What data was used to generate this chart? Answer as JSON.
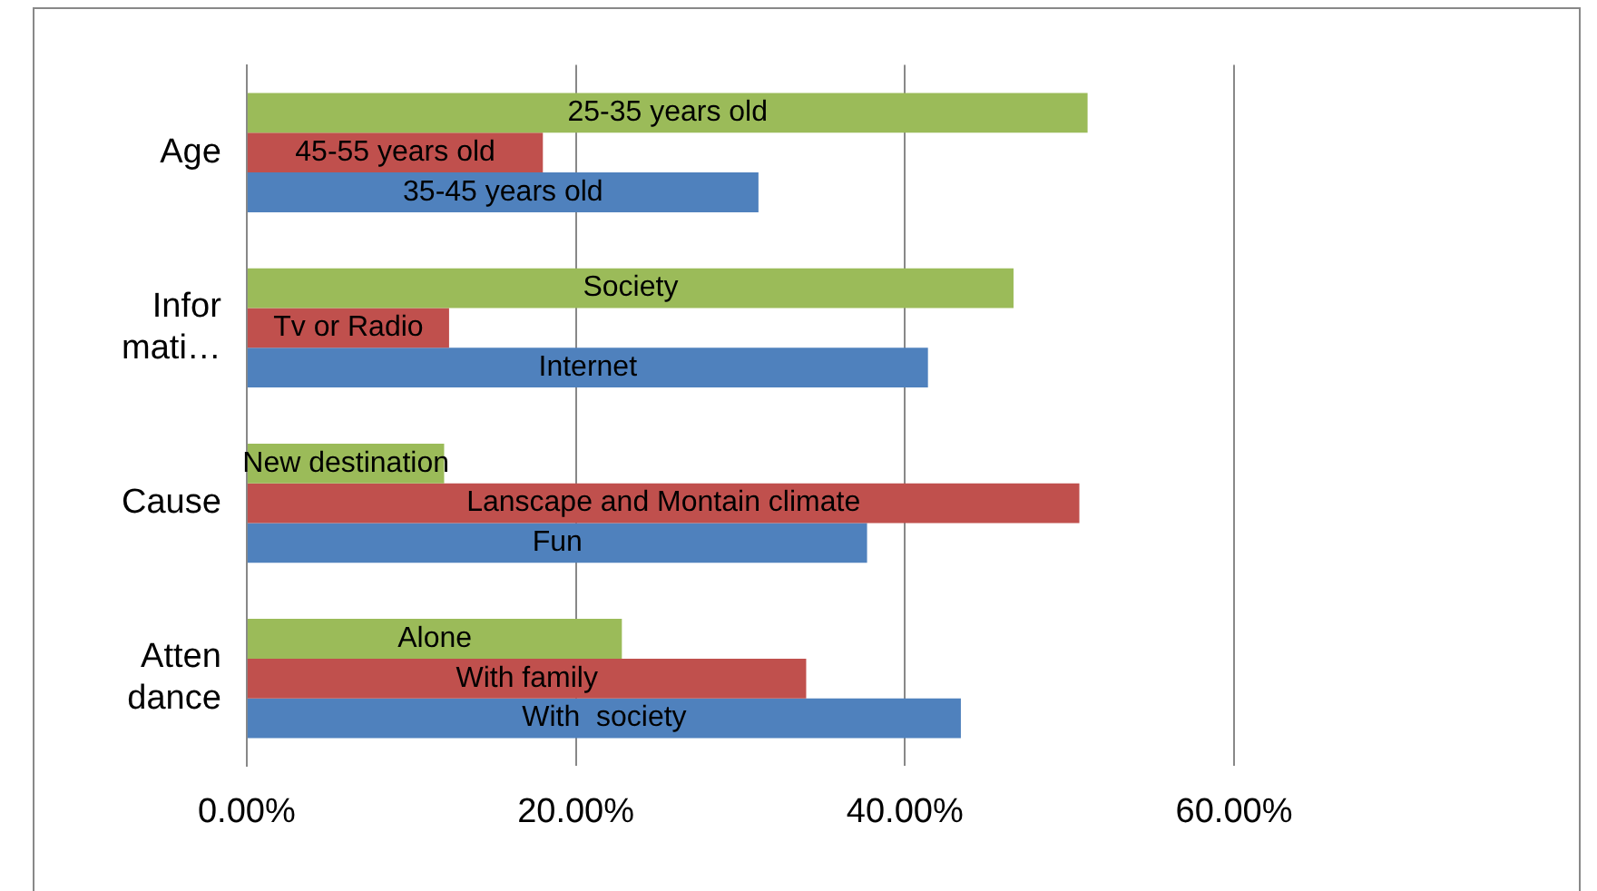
{
  "chart_data": {
    "type": "bar",
    "orientation": "horizontal",
    "categories": [
      "Age",
      "Infor mati…",
      "Cause",
      "Atten dance"
    ],
    "series": [
      {
        "color": "#9bbb59",
        "values": [
          51.1,
          46.6,
          12.0,
          22.8
        ],
        "value_labels": [
          "25-35 years old",
          "Society",
          "New destination",
          "Alone"
        ]
      },
      {
        "color": "#c0504d",
        "values": [
          18.0,
          12.3,
          50.6,
          34.0
        ],
        "value_labels": [
          "45-55 years old",
          "Tv or Radio",
          "Lanscape and Montain climate",
          "With family"
        ]
      },
      {
        "color": "#4f81bd",
        "values": [
          31.1,
          41.4,
          37.7,
          43.4
        ],
        "value_labels": [
          "35-45 years old",
          "Internet",
          "Fun",
          "With  society"
        ]
      }
    ],
    "xlim": [
      0,
      60
    ],
    "xticks": [
      {
        "value": 0,
        "label": "0.00%"
      },
      {
        "value": 20,
        "label": "20.00%"
      },
      {
        "value": 40,
        "label": "40.00%"
      },
      {
        "value": 60,
        "label": "60.00%"
      }
    ],
    "grid": "x",
    "legend": false
  }
}
